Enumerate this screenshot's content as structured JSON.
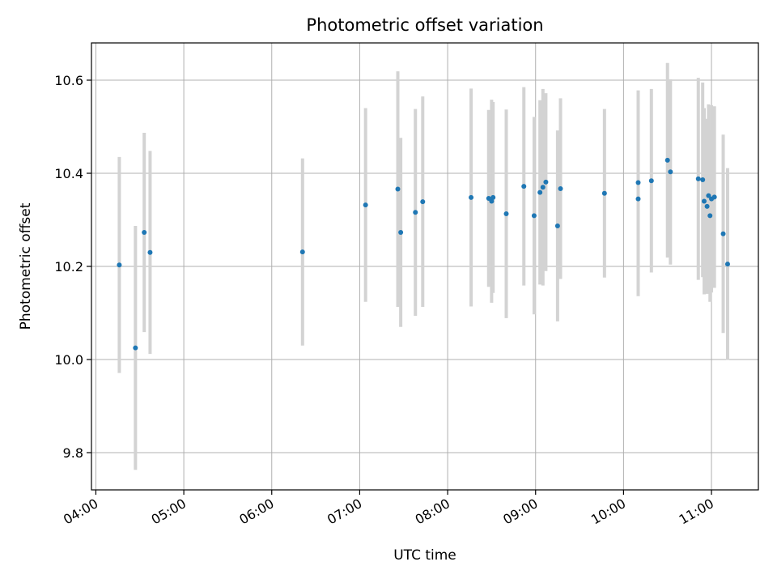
{
  "chart_data": {
    "type": "scatter",
    "title": "Photometric offset variation",
    "xlabel": "UTC time",
    "ylabel": "Photometric offset",
    "x_tick_labels": [
      "04:00",
      "05:00",
      "06:00",
      "07:00",
      "08:00",
      "09:00",
      "10:00",
      "11:00"
    ],
    "x_ticks_hours": [
      4,
      5,
      6,
      7,
      8,
      9,
      10,
      11
    ],
    "y_tick_labels": [
      "9.8",
      "10.0",
      "10.2",
      "10.4",
      "10.6"
    ],
    "y_ticks": [
      9.8,
      10.0,
      10.2,
      10.4,
      10.6
    ],
    "xlim": [
      "03:57",
      "11:32"
    ],
    "ylim": [
      9.72,
      10.68
    ],
    "grid": true,
    "point_color": "#1f77b4",
    "errorbar_color": "#d3d3d3",
    "points": [
      {
        "time": "04:16",
        "y": 10.203,
        "err": 0.232
      },
      {
        "time": "04:27",
        "y": 10.025,
        "err": 0.262
      },
      {
        "time": "04:33",
        "y": 10.273,
        "err": 0.214
      },
      {
        "time": "04:37",
        "y": 10.23,
        "err": 0.218
      },
      {
        "time": "06:21",
        "y": 10.231,
        "err": 0.201
      },
      {
        "time": "07:04",
        "y": 10.332,
        "err": 0.208
      },
      {
        "time": "07:26",
        "y": 10.366,
        "err": 0.253
      },
      {
        "time": "07:28",
        "y": 10.273,
        "err": 0.203
      },
      {
        "time": "07:38",
        "y": 10.316,
        "err": 0.222
      },
      {
        "time": "07:43",
        "y": 10.339,
        "err": 0.226
      },
      {
        "time": "08:16",
        "y": 10.348,
        "err": 0.234
      },
      {
        "time": "08:28",
        "y": 10.346,
        "err": 0.19
      },
      {
        "time": "08:30",
        "y": 10.34,
        "err": 0.218
      },
      {
        "time": "08:31",
        "y": 10.348,
        "err": 0.205
      },
      {
        "time": "08:40",
        "y": 10.313,
        "err": 0.224
      },
      {
        "time": "08:52",
        "y": 10.372,
        "err": 0.213
      },
      {
        "time": "08:59",
        "y": 10.309,
        "err": 0.212
      },
      {
        "time": "09:03",
        "y": 10.359,
        "err": 0.198
      },
      {
        "time": "09:05",
        "y": 10.37,
        "err": 0.211
      },
      {
        "time": "09:07",
        "y": 10.381,
        "err": 0.191
      },
      {
        "time": "09:15",
        "y": 10.287,
        "err": 0.205
      },
      {
        "time": "09:17",
        "y": 10.367,
        "err": 0.194
      },
      {
        "time": "09:47",
        "y": 10.357,
        "err": 0.181
      },
      {
        "time": "10:10",
        "y": 10.38,
        "err": 0.198
      },
      {
        "time": "10:10",
        "y": 10.345,
        "err": 0.209
      },
      {
        "time": "10:19",
        "y": 10.384,
        "err": 0.197
      },
      {
        "time": "10:30",
        "y": 10.428,
        "err": 0.209
      },
      {
        "time": "10:32",
        "y": 10.403,
        "err": 0.199
      },
      {
        "time": "10:51",
        "y": 10.388,
        "err": 0.217
      },
      {
        "time": "10:54",
        "y": 10.386,
        "err": 0.209
      },
      {
        "time": "10:55",
        "y": 10.34,
        "err": 0.2
      },
      {
        "time": "10:57",
        "y": 10.329,
        "err": 0.188
      },
      {
        "time": "10:58",
        "y": 10.352,
        "err": 0.196
      },
      {
        "time": "10:59",
        "y": 10.309,
        "err": 0.185
      },
      {
        "time": "11:00",
        "y": 10.345,
        "err": 0.201
      },
      {
        "time": "11:02",
        "y": 10.349,
        "err": 0.195
      },
      {
        "time": "11:08",
        "y": 10.27,
        "err": 0.213
      },
      {
        "time": "11:11",
        "y": 10.205,
        "err": 0.206
      }
    ]
  }
}
